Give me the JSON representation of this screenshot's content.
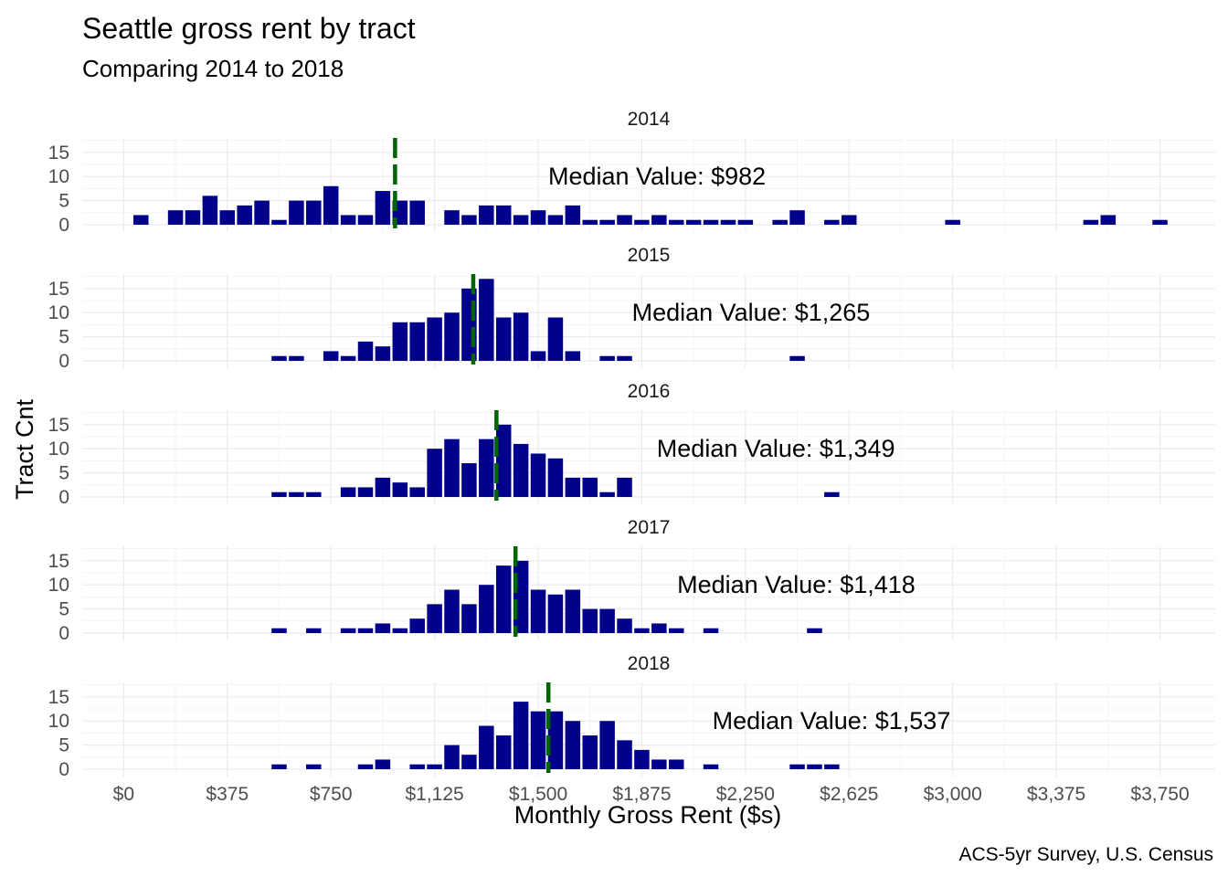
{
  "chart_data": {
    "type": "bar",
    "title": "Seattle gross rent by tract",
    "subtitle": "Comparing 2014 to 2018",
    "xlabel": "Monthly Gross Rent ($s)",
    "ylabel": "Tract Cnt",
    "caption": "ACS-5yr Survey, U.S. Census",
    "xlim": [
      -150,
      3950
    ],
    "ylim": [
      0,
      18
    ],
    "x_ticks": [
      0,
      375,
      750,
      1125,
      1500,
      1875,
      2250,
      2625,
      3000,
      3375,
      3750
    ],
    "x_tick_labels": [
      "$0",
      "$375",
      "$750",
      "$1,125",
      "$1,500",
      "$1,875",
      "$2,250",
      "$2,625",
      "$3,000",
      "$3,375",
      "$3,750"
    ],
    "y_ticks": [
      0,
      5,
      10,
      15
    ],
    "y_tick_labels": [
      "0",
      "5",
      "10",
      "15"
    ],
    "bin_width": 62.5,
    "grid": true,
    "colors": {
      "bars": "#00008B",
      "median_line": "#006400"
    },
    "facets": [
      {
        "year": "2014",
        "median": 982,
        "median_label": "Median Value: $982",
        "bins": [
          [
            62.5,
            2
          ],
          [
            187.5,
            3
          ],
          [
            250,
            3
          ],
          [
            312.5,
            6
          ],
          [
            375,
            3
          ],
          [
            437.5,
            4
          ],
          [
            500,
            5
          ],
          [
            562.5,
            1
          ],
          [
            625,
            5
          ],
          [
            687.5,
            5
          ],
          [
            750,
            8
          ],
          [
            812.5,
            2
          ],
          [
            875,
            2
          ],
          [
            937.5,
            7
          ],
          [
            1000,
            5
          ],
          [
            1062.5,
            5
          ],
          [
            1187.5,
            3
          ],
          [
            1250,
            2
          ],
          [
            1312.5,
            4
          ],
          [
            1375,
            4
          ],
          [
            1437.5,
            2
          ],
          [
            1500,
            3
          ],
          [
            1562.5,
            2
          ],
          [
            1625,
            4
          ],
          [
            1687.5,
            1
          ],
          [
            1750,
            1
          ],
          [
            1812.5,
            2
          ],
          [
            1875,
            1
          ],
          [
            1937.5,
            2
          ],
          [
            2000,
            1
          ],
          [
            2062.5,
            1
          ],
          [
            2125,
            1
          ],
          [
            2187.5,
            1
          ],
          [
            2250,
            1
          ],
          [
            2375,
            1
          ],
          [
            2437.5,
            3
          ],
          [
            2562.5,
            1
          ],
          [
            2625,
            2
          ],
          [
            3000,
            1
          ],
          [
            3500,
            1
          ],
          [
            3562.5,
            2
          ],
          [
            3750,
            1
          ]
        ]
      },
      {
        "year": "2015",
        "median": 1265,
        "median_label": "Median Value: $1,265",
        "bins": [
          [
            562.5,
            1
          ],
          [
            625,
            1
          ],
          [
            750,
            2
          ],
          [
            812.5,
            1
          ],
          [
            875,
            4
          ],
          [
            937.5,
            3
          ],
          [
            1000,
            8
          ],
          [
            1062.5,
            8
          ],
          [
            1125,
            9
          ],
          [
            1187.5,
            10
          ],
          [
            1250,
            15
          ],
          [
            1312.5,
            17
          ],
          [
            1375,
            9
          ],
          [
            1437.5,
            10
          ],
          [
            1500,
            2
          ],
          [
            1562.5,
            9
          ],
          [
            1625,
            2
          ],
          [
            1750,
            1
          ],
          [
            1812.5,
            1
          ],
          [
            2437.5,
            1
          ]
        ]
      },
      {
        "year": "2016",
        "median": 1349,
        "median_label": "Median Value: $1,349",
        "bins": [
          [
            562.5,
            1
          ],
          [
            625,
            1
          ],
          [
            687.5,
            1
          ],
          [
            812.5,
            2
          ],
          [
            875,
            2
          ],
          [
            937.5,
            4
          ],
          [
            1000,
            3
          ],
          [
            1062.5,
            2
          ],
          [
            1125,
            10
          ],
          [
            1187.5,
            12
          ],
          [
            1250,
            7
          ],
          [
            1312.5,
            12
          ],
          [
            1375,
            15
          ],
          [
            1437.5,
            11
          ],
          [
            1500,
            9
          ],
          [
            1562.5,
            8
          ],
          [
            1625,
            4
          ],
          [
            1687.5,
            4
          ],
          [
            1750,
            1
          ],
          [
            1812.5,
            4
          ],
          [
            2562.5,
            1
          ]
        ]
      },
      {
        "year": "2017",
        "median": 1418,
        "median_label": "Median Value: $1,418",
        "bins": [
          [
            562.5,
            1
          ],
          [
            687.5,
            1
          ],
          [
            812.5,
            1
          ],
          [
            875,
            1
          ],
          [
            937.5,
            2
          ],
          [
            1000,
            1
          ],
          [
            1062.5,
            3
          ],
          [
            1125,
            6
          ],
          [
            1187.5,
            9
          ],
          [
            1250,
            6
          ],
          [
            1312.5,
            10
          ],
          [
            1375,
            14
          ],
          [
            1437.5,
            15
          ],
          [
            1500,
            9
          ],
          [
            1562.5,
            8
          ],
          [
            1625,
            9
          ],
          [
            1687.5,
            5
          ],
          [
            1750,
            5
          ],
          [
            1812.5,
            3
          ],
          [
            1875,
            1
          ],
          [
            1937.5,
            2
          ],
          [
            2000,
            1
          ],
          [
            2125,
            1
          ],
          [
            2500,
            1
          ]
        ]
      },
      {
        "year": "2018",
        "median": 1537,
        "median_label": "Median Value: $1,537",
        "bins": [
          [
            562.5,
            1
          ],
          [
            687.5,
            1
          ],
          [
            875,
            1
          ],
          [
            937.5,
            2
          ],
          [
            1062.5,
            1
          ],
          [
            1125,
            1
          ],
          [
            1187.5,
            5
          ],
          [
            1250,
            3
          ],
          [
            1312.5,
            9
          ],
          [
            1375,
            7
          ],
          [
            1437.5,
            14
          ],
          [
            1500,
            12
          ],
          [
            1562.5,
            12
          ],
          [
            1625,
            10
          ],
          [
            1687.5,
            7
          ],
          [
            1750,
            10
          ],
          [
            1812.5,
            6
          ],
          [
            1875,
            4
          ],
          [
            1937.5,
            2
          ],
          [
            2000,
            2
          ],
          [
            2125,
            1
          ],
          [
            2437.5,
            1
          ],
          [
            2500,
            1
          ],
          [
            2562.5,
            1
          ]
        ]
      }
    ]
  }
}
